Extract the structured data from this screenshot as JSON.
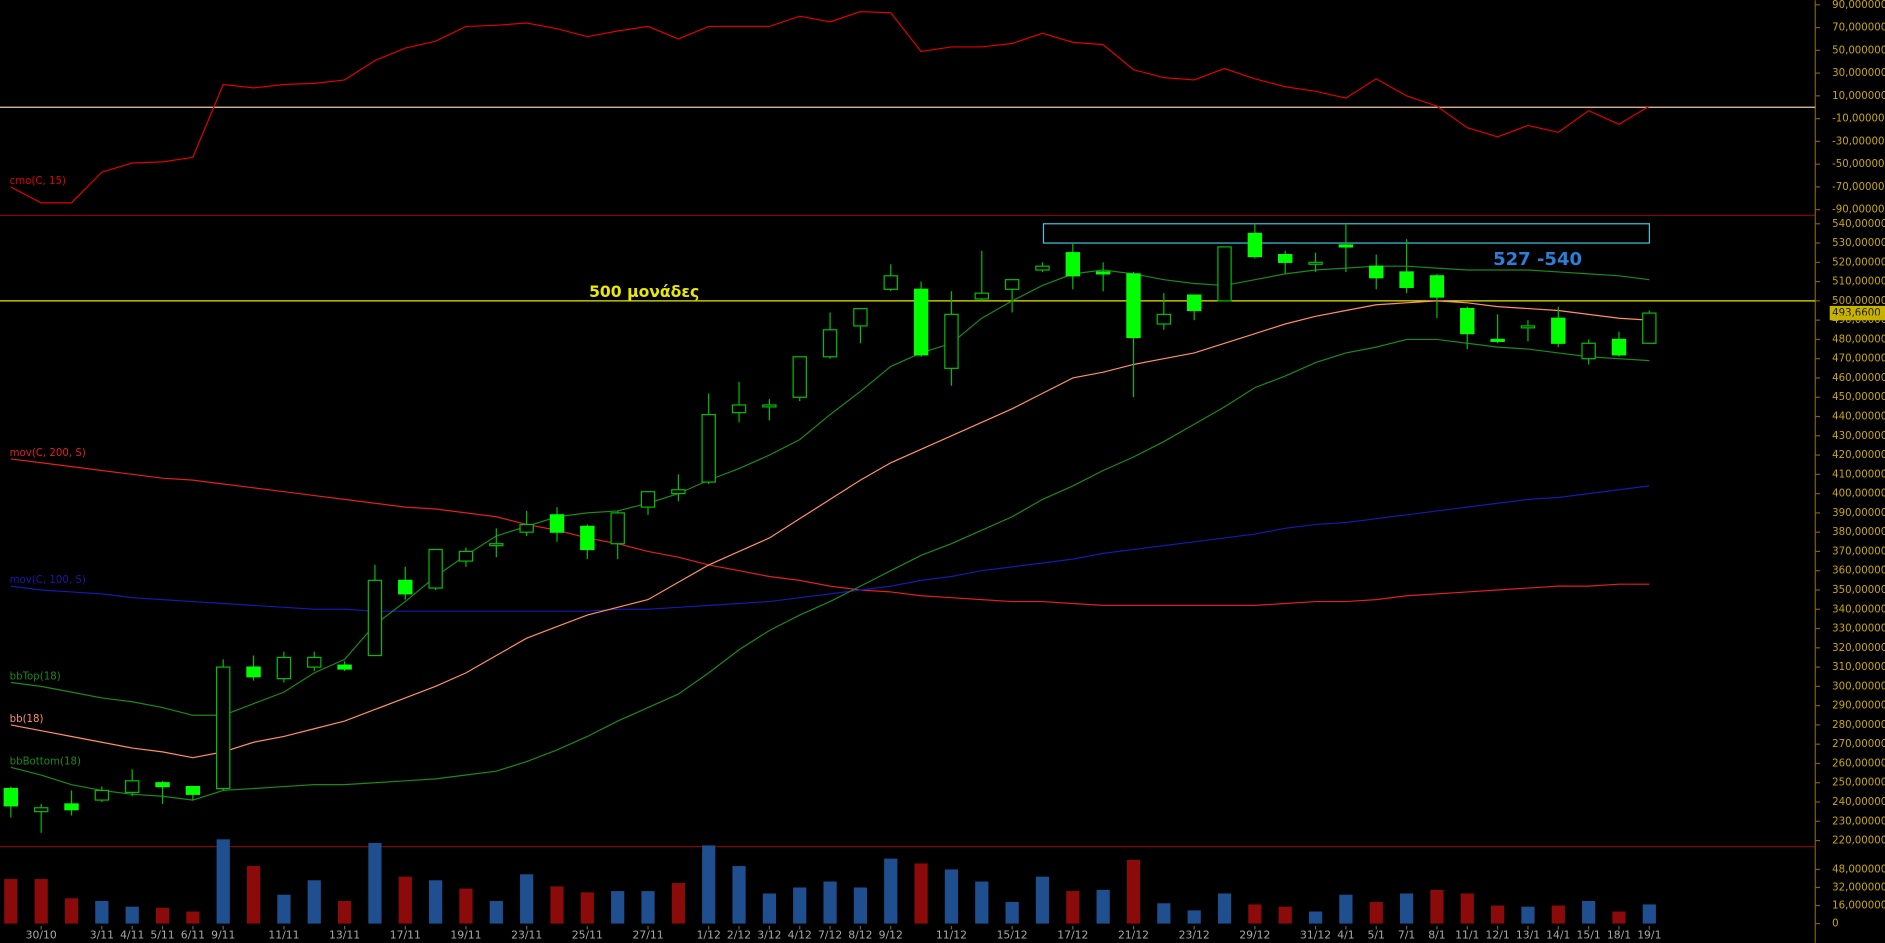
{
  "chart_data": [
    {
      "type": "line",
      "ylim": [
        -94,
        94
      ],
      "yticks": [
        {
          "value": 90,
          "label": "90,000000"
        },
        {
          "value": 70,
          "label": "70,000000"
        },
        {
          "value": 50,
          "label": "50,000000"
        },
        {
          "value": 30,
          "label": "30,000000"
        },
        {
          "value": 10,
          "label": "10,000000"
        },
        {
          "value": -10,
          "label": "-10,000000"
        },
        {
          "value": -30,
          "label": "-30,000000"
        },
        {
          "value": -50,
          "label": "-50,000000"
        },
        {
          "value": -70,
          "label": "-70,000000"
        },
        {
          "value": -90,
          "label": "-90,000000"
        }
      ],
      "refline": 0,
      "refline_color": "#f0c8a0",
      "series": [
        {
          "name": "cmo(C, 15)",
          "color": "#e00000",
          "values": [
            -70,
            -84,
            -84,
            -57,
            -49,
            -48,
            -44,
            20,
            17,
            20,
            21,
            24,
            41,
            52,
            58,
            71,
            72,
            74,
            69,
            62,
            67,
            71,
            60,
            71,
            71,
            71,
            80,
            75,
            84,
            83,
            49,
            53,
            53,
            56,
            65,
            57,
            55,
            33,
            26,
            24,
            34,
            25,
            18,
            14,
            8,
            25,
            10,
            1,
            -18,
            -26,
            -16,
            -22,
            -3,
            -15,
            1
          ]
        }
      ]
    },
    {
      "type": "candlestick",
      "ylim": [
        217.5,
        543.7
      ],
      "yticks": [
        {
          "value": 220,
          "label": "220,000000"
        },
        {
          "value": 230,
          "label": "230,000000"
        },
        {
          "value": 240,
          "label": "240,000000"
        },
        {
          "value": 250,
          "label": "250,000000"
        },
        {
          "value": 260,
          "label": "260,000000"
        },
        {
          "value": 270,
          "label": "270,000000"
        },
        {
          "value": 280,
          "label": "280,000000"
        },
        {
          "value": 290,
          "label": "290,000000"
        },
        {
          "value": 300,
          "label": "300,000000"
        },
        {
          "value": 310,
          "label": "310,000000"
        },
        {
          "value": 320,
          "label": "320,000000"
        },
        {
          "value": 330,
          "label": "330,000000"
        },
        {
          "value": 340,
          "label": "340,000000"
        },
        {
          "value": 350,
          "label": "350,000000"
        },
        {
          "value": 360,
          "label": "360,000000"
        },
        {
          "value": 370,
          "label": "370,000000"
        },
        {
          "value": 380,
          "label": "380,000000"
        },
        {
          "value": 390,
          "label": "390,000000"
        },
        {
          "value": 400,
          "label": "400,000000"
        },
        {
          "value": 410,
          "label": "410,000000"
        },
        {
          "value": 420,
          "label": "420,000000"
        },
        {
          "value": 430,
          "label": "430,000000"
        },
        {
          "value": 440,
          "label": "440,000000"
        },
        {
          "value": 450,
          "label": "450,000000"
        },
        {
          "value": 460,
          "label": "460,000000"
        },
        {
          "value": 470,
          "label": "470,000000"
        },
        {
          "value": 480,
          "label": "480,000000"
        },
        {
          "value": 490,
          "label": "490,000000"
        },
        {
          "value": 500,
          "label": "500,000000"
        },
        {
          "value": 510,
          "label": "510,000000"
        },
        {
          "value": 520,
          "label": "520,000000"
        },
        {
          "value": 530,
          "label": "530,000000"
        },
        {
          "value": 540,
          "label": "540,000000"
        }
      ],
      "up_color": "#00c000",
      "down_color": "#00ff00",
      "open": [
        247,
        235,
        239,
        241,
        245,
        250,
        248,
        247,
        310,
        304,
        310,
        311,
        316,
        355,
        351,
        365,
        373,
        380,
        389,
        383,
        374,
        393,
        400,
        406,
        442,
        445,
        450,
        471,
        487,
        506,
        506,
        465,
        501,
        506,
        516,
        525,
        515,
        514,
        488,
        503,
        500,
        535,
        524,
        519,
        529,
        518,
        515,
        513,
        496,
        480,
        486,
        491,
        470,
        480,
        478
      ],
      "high": [
        248,
        239,
        246,
        248,
        257,
        251,
        248,
        314,
        316,
        318,
        318,
        313,
        363,
        362,
        371,
        372,
        382,
        391,
        393,
        384,
        391,
        401,
        410,
        452,
        458,
        449,
        471,
        494,
        496,
        519,
        510,
        505,
        526,
        511,
        520,
        530,
        520,
        515,
        504,
        503,
        528,
        540,
        526,
        525,
        540,
        524,
        532,
        514,
        497,
        493,
        490,
        497,
        480,
        484,
        495
      ],
      "low": [
        232,
        224,
        233,
        240,
        243,
        239,
        241,
        246,
        303,
        302,
        308,
        308,
        316,
        345,
        350,
        362,
        367,
        378,
        375,
        366,
        366,
        389,
        396,
        405,
        437,
        438,
        448,
        470,
        478,
        505,
        471,
        456,
        500,
        494,
        515,
        506,
        505,
        450,
        485,
        490,
        500,
        522,
        514,
        515,
        515,
        506,
        504,
        491,
        475,
        478,
        479,
        476,
        467,
        471,
        478
      ],
      "close": [
        238,
        237,
        236,
        246,
        251,
        248,
        244,
        310,
        305,
        315,
        315,
        309,
        355,
        348,
        371,
        370,
        374,
        384,
        380,
        371,
        390,
        401,
        402,
        441,
        446,
        446,
        471,
        485,
        496,
        513,
        472,
        493,
        504,
        511,
        518,
        513,
        514,
        481,
        493,
        495,
        528,
        523,
        520,
        520,
        528,
        512,
        507,
        502,
        483,
        479,
        487,
        478,
        478,
        472,
        493.66
      ],
      "last_label": "493,6600",
      "hline": {
        "value": 500,
        "label": "500 μονάδες",
        "color": "#e8e800"
      },
      "box": {
        "range": [
          530,
          540
        ],
        "label": "527 -540",
        "color": "#40c8e0",
        "label_color": "#2a80d8"
      },
      "series": [
        {
          "name": "mov(C, 200, S)",
          "color": "#e02020",
          "values": [
            418,
            416,
            414,
            412,
            410,
            408,
            407,
            405,
            403,
            401,
            399,
            397,
            395,
            393,
            392,
            390,
            388,
            384,
            381,
            377,
            374,
            370,
            367,
            363,
            360,
            357,
            355,
            352,
            350,
            349,
            347,
            346,
            345,
            344,
            344,
            343,
            342,
            342,
            342,
            342,
            342,
            342,
            343,
            344,
            344,
            345,
            347,
            348,
            349,
            350,
            351,
            352,
            352,
            353,
            353
          ]
        },
        {
          "name": "mov(C, 100, S)",
          "color": "#1818b0",
          "values": [
            352,
            350,
            349,
            348,
            346,
            345,
            344,
            343,
            342,
            341,
            340,
            340,
            339,
            339,
            339,
            339,
            339,
            339,
            339,
            339,
            340,
            340,
            341,
            342,
            343,
            344,
            346,
            348,
            350,
            352,
            355,
            357,
            360,
            362,
            364,
            366,
            369,
            371,
            373,
            375,
            377,
            379,
            382,
            384,
            385,
            387,
            389,
            391,
            393,
            395,
            397,
            398,
            400,
            402,
            404
          ]
        },
        {
          "name": "bbTop(18)",
          "color": "#1a8a1a",
          "values": [
            302,
            300,
            297,
            294,
            292,
            289,
            285,
            285,
            291,
            297,
            307,
            314,
            332,
            344,
            357,
            368,
            378,
            383,
            388,
            390,
            391,
            395,
            400,
            407,
            413,
            420,
            428,
            441,
            453,
            466,
            473,
            478,
            491,
            500,
            508,
            514,
            516,
            514,
            511,
            509,
            508,
            511,
            514,
            516,
            517,
            518,
            518,
            517,
            516,
            516,
            516,
            515,
            514,
            513,
            511
          ]
        },
        {
          "name": "bb(18)",
          "color": "#ff9060",
          "values": [
            280,
            277,
            274,
            271,
            268,
            266,
            263,
            266,
            271,
            274,
            278,
            282,
            288,
            294,
            300,
            307,
            316,
            325,
            331,
            337,
            341,
            345,
            354,
            363,
            370,
            377,
            387,
            397,
            407,
            416,
            423,
            430,
            437,
            444,
            452,
            460,
            463,
            467,
            470,
            473,
            478,
            483,
            488,
            492,
            495,
            498,
            499,
            500,
            499,
            497,
            496,
            495,
            493,
            491,
            490
          ]
        },
        {
          "name": "bbBottom(18)",
          "color": "#1a8a1a",
          "values": [
            258,
            254,
            249,
            246,
            244,
            243,
            241,
            246,
            247,
            248,
            249,
            249,
            250,
            251,
            252,
            254,
            256,
            261,
            267,
            274,
            282,
            289,
            296,
            307,
            319,
            329,
            337,
            344,
            352,
            360,
            368,
            374,
            381,
            388,
            397,
            404,
            412,
            419,
            427,
            436,
            445,
            455,
            461,
            468,
            473,
            476,
            480,
            480,
            478,
            476,
            475,
            473,
            471,
            470,
            469
          ]
        }
      ]
    },
    {
      "type": "bar",
      "ylim": [
        -17,
        76.8
      ],
      "yticks": [
        0,
        {
          "value": 16,
          "label": "16,000000"
        },
        {
          "value": 32,
          "label": "32,000000"
        },
        {
          "value": 48,
          "label": "48,000000"
        }
      ],
      "categories": [
        null,
        "30/10",
        null,
        "3/11",
        "4/11",
        "5/11",
        "6/11",
        "9/11",
        null,
        "11/11",
        null,
        "13/11",
        null,
        "17/11",
        null,
        "19/11",
        null,
        "23/11",
        null,
        "25/11",
        null,
        "27/11",
        null,
        "1/12",
        "2/12",
        "3/12",
        "4/12",
        "7/12",
        "8/12",
        "9/12",
        null,
        "11/12",
        null,
        "15/12",
        null,
        "17/12",
        null,
        "21/12",
        null,
        "23/12",
        null,
        "29/12",
        null,
        "31/12",
        "4/1",
        "5/1",
        "7/1",
        "8/1",
        "11/1",
        "12/1",
        "13/1",
        "14/1",
        "15/1",
        "18/1",
        "19/1"
      ],
      "values": [
        39.5,
        39.5,
        22.4,
        20,
        15,
        14,
        10.7,
        74.7,
        51,
        25.6,
        38.4,
        20,
        71.5,
        41.6,
        38.4,
        31,
        20,
        43.7,
        33,
        27.7,
        28.8,
        28.8,
        36,
        69.3,
        51,
        26.7,
        32,
        37.3,
        32,
        57.6,
        53.3,
        48,
        37.3,
        19.2,
        41.6,
        28.8,
        29.9,
        56.5,
        18,
        11.7,
        26.7,
        17,
        15,
        10.7,
        25.6,
        19.2,
        26.7,
        29.9,
        26.7,
        16,
        15,
        16,
        20,
        10.7,
        17
      ],
      "colors": [
        "#8b0a0a",
        "#8b0a0a",
        "#8b0a0a",
        "#1f4f8f",
        "#1f4f8f",
        "#8b0a0a",
        "#8b0a0a",
        "#1f4f8f",
        "#8b0a0a",
        "#1f4f8f",
        "#1f4f8f",
        "#8b0a0a",
        "#1f4f8f",
        "#8b0a0a",
        "#1f4f8f",
        "#8b0a0a",
        "#1f4f8f",
        "#1f4f8f",
        "#8b0a0a",
        "#8b0a0a",
        "#1f4f8f",
        "#1f4f8f",
        "#8b0a0a",
        "#1f4f8f",
        "#1f4f8f",
        "#1f4f8f",
        "#1f4f8f",
        "#1f4f8f",
        "#1f4f8f",
        "#1f4f8f",
        "#8b0a0a",
        "#1f4f8f",
        "#1f4f8f",
        "#1f4f8f",
        "#1f4f8f",
        "#8b0a0a",
        "#1f4f8f",
        "#8b0a0a",
        "#1f4f8f",
        "#1f4f8f",
        "#1f4f8f",
        "#8b0a0a",
        "#8b0a0a",
        "#1f4f8f",
        "#1f4f8f",
        "#8b0a0a",
        "#1f4f8f",
        "#8b0a0a",
        "#8b0a0a",
        "#8b0a0a",
        "#1f4f8f",
        "#8b0a0a",
        "#1f4f8f",
        "#8b0a0a",
        "#1f4f8f"
      ]
    }
  ]
}
